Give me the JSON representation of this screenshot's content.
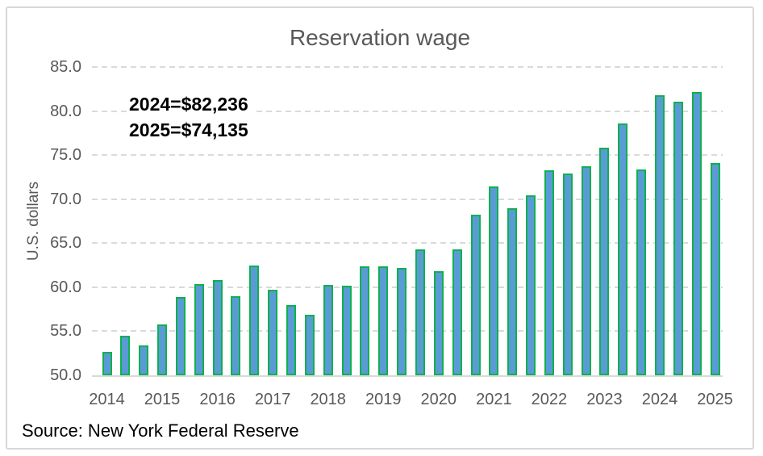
{
  "title": "Reservation wage",
  "annotation": {
    "line1": "2024=$82,236",
    "line2": "2025=$74,135"
  },
  "source": "Source: New York Federal Reserve",
  "y_axis": {
    "label": "U.S. dollars",
    "ticks": [
      "85.0",
      "80.0",
      "75.0",
      "70.0",
      "65.0",
      "60.0",
      "55.0",
      "50.0"
    ]
  },
  "x_axis": {
    "years": [
      "2014",
      "2015",
      "2016",
      "2017",
      "2018",
      "2019",
      "2020",
      "2021",
      "2022",
      "2023",
      "2024",
      "2025"
    ]
  },
  "colors": {
    "bar_fill": "#5B9BD5",
    "bar_border": "#0EB04F",
    "gridline": "#DADADA",
    "axis_text": "#595959",
    "annotation_text": "#000000"
  },
  "chart_data": {
    "type": "bar",
    "title": "Reservation wage",
    "xlabel": "",
    "ylabel": "U.S. dollars",
    "ylim": [
      50,
      85
    ],
    "ytick_interval": 5,
    "grid": true,
    "legend": false,
    "bars_per_year": 3,
    "groups": [
      {
        "year": "2014",
        "values": [
          52.7,
          54.5,
          53.4
        ]
      },
      {
        "year": "2015",
        "values": [
          55.8,
          58.9,
          60.4
        ]
      },
      {
        "year": "2016",
        "values": [
          60.8,
          59.0,
          62.5
        ]
      },
      {
        "year": "2017",
        "values": [
          59.7,
          58.0,
          56.9
        ]
      },
      {
        "year": "2018",
        "values": [
          60.3,
          60.2,
          62.4
        ]
      },
      {
        "year": "2019",
        "values": [
          62.4,
          62.2,
          64.3
        ]
      },
      {
        "year": "2020",
        "values": [
          61.8,
          64.3,
          68.2
        ]
      },
      {
        "year": "2021",
        "values": [
          71.4,
          69.0,
          70.4
        ]
      },
      {
        "year": "2022",
        "values": [
          73.3,
          72.9,
          73.7
        ]
      },
      {
        "year": "2023",
        "values": [
          75.8,
          78.6,
          73.4
        ]
      },
      {
        "year": "2024",
        "values": [
          81.8,
          81.1,
          82.2
        ]
      },
      {
        "year": "2025",
        "values": [
          74.1
        ]
      }
    ],
    "annotations": [
      "2024=$82,236",
      "2025=$74,135"
    ]
  }
}
